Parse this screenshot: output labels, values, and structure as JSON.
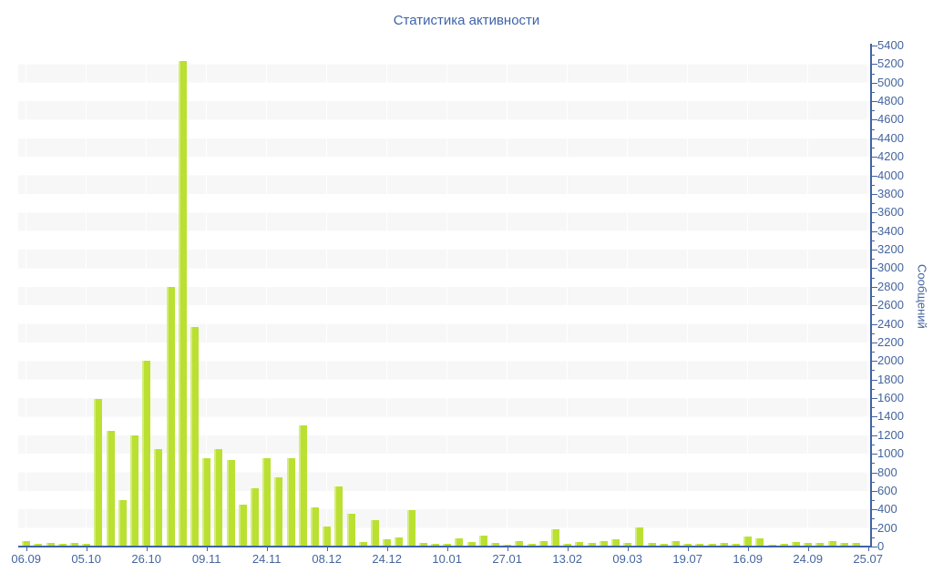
{
  "page": {
    "background": "#ffffff"
  },
  "chart_data": {
    "type": "bar",
    "title": "Статистика активности",
    "xlabel": "",
    "ylabel": "Сообщений",
    "ylim": [
      0,
      5400
    ],
    "ytick_step": 200,
    "y_minor_tick_step": 100,
    "grid": "horizontal-stripes",
    "legend": "none",
    "colors": {
      "bar": "#bae032",
      "bar_highlight": "#d4ec7e",
      "axis": "#4063a2",
      "labels": "#44659e",
      "title": "#3e63a8",
      "stripe": "#f7f7f7",
      "background": "#ffffff"
    },
    "x_tick_labels": [
      "06.09",
      "05.10",
      "26.10",
      "09.11",
      "24.11",
      "08.12",
      "24.12",
      "10.01",
      "27.01",
      "13.02",
      "09.03",
      "19.07",
      "16.09",
      "24.09",
      "25.07"
    ],
    "bars_per_tick": 5,
    "y_tick_labels": [
      "0",
      "200",
      "400",
      "600",
      "800",
      "1000",
      "1200",
      "1400",
      "1600",
      "1800",
      "2000",
      "2200",
      "2400",
      "2600",
      "2800",
      "3000",
      "3200",
      "3400",
      "3600",
      "3800",
      "4000",
      "4200",
      "4400",
      "4600",
      "4800",
      "5000",
      "5200",
      "5400"
    ],
    "values": [
      60,
      30,
      40,
      30,
      40,
      30,
      1590,
      1250,
      500,
      1200,
      2000,
      1050,
      2800,
      5230,
      2370,
      950,
      1050,
      930,
      450,
      630,
      950,
      750,
      950,
      1310,
      420,
      215,
      650,
      350,
      50,
      280,
      80,
      100,
      390,
      40,
      25,
      30,
      90,
      50,
      120,
      40,
      15,
      60,
      30,
      55,
      190,
      30,
      50,
      40,
      60,
      80,
      40,
      210,
      40,
      25,
      55,
      25,
      25,
      30,
      40,
      25,
      105,
      90,
      15,
      30,
      45,
      35,
      40,
      55,
      40,
      40,
      10
    ]
  }
}
